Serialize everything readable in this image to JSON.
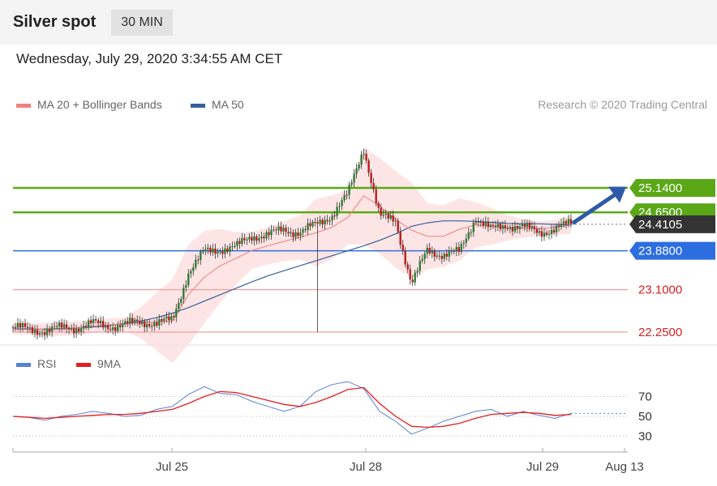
{
  "header": {
    "title": "Silver spot",
    "timeframe": "30 MIN"
  },
  "timestamp": "Wednesday, July 29, 2020 3:34:55 AM CET",
  "legend": {
    "ma20": {
      "label": "MA 20 + Bollinger Bands",
      "color": "#f08080"
    },
    "ma50": {
      "label": "MA 50",
      "color": "#34609e"
    }
  },
  "credit": "Research © 2020 Trading Central",
  "rsi_legend": {
    "rsi": {
      "label": "RSI",
      "color": "#5b7fd6"
    },
    "ma9": {
      "label": "9MA",
      "color": "#e02020"
    }
  },
  "chart_data": [
    {
      "type": "line",
      "title": "Silver spot",
      "x_ticks": [
        "Jul 25",
        "Jul 28",
        "Jul 29",
        "Aug 13"
      ],
      "levels": [
        {
          "value": 25.14,
          "label": "25.1400",
          "kind": "resistance",
          "color": "#5aa817"
        },
        {
          "value": 24.65,
          "label": "24.6500",
          "kind": "resistance",
          "color": "#5aa817"
        },
        {
          "value": 24.4105,
          "label": "24.4105",
          "kind": "last-price",
          "color": "#333333"
        },
        {
          "value": 23.88,
          "label": "23.8800",
          "kind": "pivot",
          "color": "#2c6ee0"
        },
        {
          "value": 23.1,
          "label": "23.1000",
          "kind": "support",
          "color": "#e04040"
        },
        {
          "value": 22.25,
          "label": "22.2500",
          "kind": "support",
          "color": "#e04040"
        }
      ],
      "series": [
        {
          "name": "MA 50",
          "values": [
            22.32,
            22.31,
            22.31,
            22.32,
            22.33,
            22.35,
            22.38,
            22.42,
            22.47,
            22.54,
            22.63,
            22.74,
            22.87,
            23.0,
            23.13,
            23.26,
            23.38,
            23.48,
            23.58,
            23.68,
            23.78,
            23.88,
            23.98,
            24.09,
            24.22,
            24.37,
            24.44,
            24.48,
            24.48,
            24.47,
            24.45,
            24.43,
            24.42,
            24.42,
            24.41,
            24.4
          ]
        },
        {
          "name": "MA 20",
          "values": [
            22.33,
            22.32,
            22.3,
            22.31,
            22.33,
            22.37,
            22.39,
            22.41,
            22.44,
            22.46,
            22.47,
            23.0,
            23.35,
            23.58,
            23.73,
            23.89,
            23.98,
            24.07,
            24.15,
            24.24,
            24.35,
            24.55,
            24.98,
            24.78,
            24.51,
            24.29,
            24.17,
            24.17,
            24.31,
            24.4,
            24.37,
            24.34,
            24.33,
            24.32,
            24.35,
            24.4
          ]
        }
      ],
      "price_path": [
        22.35,
        22.3,
        22.28,
        22.33,
        22.34,
        22.42,
        22.37,
        22.4,
        22.45,
        22.44,
        22.48,
        23.45,
        23.85,
        23.92,
        23.95,
        24.18,
        24.2,
        24.3,
        24.25,
        24.4,
        24.6,
        25.0,
        25.95,
        24.55,
        24.5,
        23.2,
        23.9,
        23.8,
        23.85,
        24.55,
        24.3,
        24.4,
        24.35,
        24.25,
        24.32,
        24.43
      ]
    },
    {
      "type": "line",
      "title": "RSI",
      "y_ticks": [
        70,
        50,
        30
      ],
      "series": [
        {
          "name": "RSI",
          "values": [
            50,
            49,
            46,
            50,
            52,
            55,
            53,
            50,
            51,
            57,
            60,
            72,
            80,
            73,
            72,
            65,
            60,
            55,
            60,
            75,
            82,
            85,
            78,
            55,
            45,
            32,
            38,
            45,
            50,
            55,
            57,
            50,
            55,
            51,
            48,
            53
          ]
        },
        {
          "name": "9MA",
          "values": [
            50,
            49,
            48,
            49,
            50,
            51,
            52,
            52,
            53,
            55,
            57,
            63,
            70,
            75,
            74,
            70,
            66,
            62,
            60,
            64,
            70,
            77,
            79,
            63,
            50,
            40,
            39,
            40,
            43,
            48,
            52,
            53,
            54,
            53,
            51,
            52
          ]
        }
      ]
    }
  ]
}
